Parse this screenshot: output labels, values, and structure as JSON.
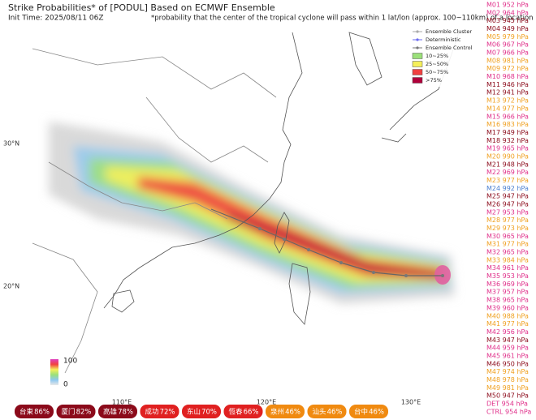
{
  "header": {
    "title": "Strike Probabilities* of [PODUL] Based on ECMWF Ensemble",
    "init_time": "Init Time: 2025/08/11 06Z",
    "note": "*probability that the center of the tropical cyclone will pass within 1 lat/lon (approx. 100~110km) of a location"
  },
  "legend": {
    "items": [
      {
        "label": "Ensemble Cluster"
      },
      {
        "label": "Deterministic"
      },
      {
        "label": "Ensemble Control"
      },
      {
        "label": "10~25%",
        "color": "#9be07a"
      },
      {
        "label": "25~50%",
        "color": "#f5ef5a"
      },
      {
        "label": "50~75%",
        "color": "#f04040"
      },
      {
        "label": ">75%",
        "color": "#b0003a"
      }
    ]
  },
  "axes": {
    "lat_labels": [
      "30°N",
      "20°N"
    ],
    "lon_labels": [
      "110°E",
      "120°E",
      "130°E"
    ]
  },
  "colorbar": {
    "max_label": "100",
    "min_label": "0"
  },
  "members": [
    {
      "label": "M01 952 hPa",
      "color": "#e0308a"
    },
    {
      "label": "M02 964 hPa",
      "color": "#e0308a"
    },
    {
      "label": "M03 945 hPa",
      "color": "#8b0a1a"
    },
    {
      "label": "M04 949 hPa",
      "color": "#8b0a1a"
    },
    {
      "label": "M05 979 hPa",
      "color": "#f0a020"
    },
    {
      "label": "M06 967 hPa",
      "color": "#e0308a"
    },
    {
      "label": "M07 966 hPa",
      "color": "#e0308a"
    },
    {
      "label": "M08 981 hPa",
      "color": "#f0a020"
    },
    {
      "label": "M09 972 hPa",
      "color": "#f0a020"
    },
    {
      "label": "M10 968 hPa",
      "color": "#e0308a"
    },
    {
      "label": "M11 946 hPa",
      "color": "#8b0a1a"
    },
    {
      "label": "M12 941 hPa",
      "color": "#8b0a1a"
    },
    {
      "label": "M13 972 hPa",
      "color": "#f0a020"
    },
    {
      "label": "M14 977 hPa",
      "color": "#f0a020"
    },
    {
      "label": "M15 966 hPa",
      "color": "#e0308a"
    },
    {
      "label": "M16 983 hPa",
      "color": "#f0a020"
    },
    {
      "label": "M17 949 hPa",
      "color": "#8b0a1a"
    },
    {
      "label": "M18 932 hPa",
      "color": "#8b0a1a"
    },
    {
      "label": "M19 965 hPa",
      "color": "#e0308a"
    },
    {
      "label": "M20 990 hPa",
      "color": "#f0a020"
    },
    {
      "label": "M21 948 hPa",
      "color": "#8b0a1a"
    },
    {
      "label": "M22 969 hPa",
      "color": "#e0308a"
    },
    {
      "label": "M23 977 hPa",
      "color": "#f0a020"
    },
    {
      "label": "M24 992 hPa",
      "color": "#4a7fd0"
    },
    {
      "label": "M25 947 hPa",
      "color": "#8b0a1a"
    },
    {
      "label": "M26 947 hPa",
      "color": "#8b0a1a"
    },
    {
      "label": "M27 953 hPa",
      "color": "#e0308a"
    },
    {
      "label": "M28 977 hPa",
      "color": "#f0a020"
    },
    {
      "label": "M29 973 hPa",
      "color": "#f0a020"
    },
    {
      "label": "M30 965 hPa",
      "color": "#e0308a"
    },
    {
      "label": "M31 977 hPa",
      "color": "#f0a020"
    },
    {
      "label": "M32 965 hPa",
      "color": "#e0308a"
    },
    {
      "label": "M33 984 hPa",
      "color": "#f0a020"
    },
    {
      "label": "M34 961 hPa",
      "color": "#e0308a"
    },
    {
      "label": "M35 953 hPa",
      "color": "#e0308a"
    },
    {
      "label": "M36 969 hPa",
      "color": "#e0308a"
    },
    {
      "label": "M37 957 hPa",
      "color": "#e0308a"
    },
    {
      "label": "M38 965 hPa",
      "color": "#e0308a"
    },
    {
      "label": "M39 960 hPa",
      "color": "#e0308a"
    },
    {
      "label": "M40 988 hPa",
      "color": "#f0a020"
    },
    {
      "label": "M41 977 hPa",
      "color": "#f0a020"
    },
    {
      "label": "M42 956 hPa",
      "color": "#e0308a"
    },
    {
      "label": "M43 947 hPa",
      "color": "#8b0a1a"
    },
    {
      "label": "M44 959 hPa",
      "color": "#e0308a"
    },
    {
      "label": "M45 961 hPa",
      "color": "#e0308a"
    },
    {
      "label": "M46 950 hPa",
      "color": "#8b0a1a"
    },
    {
      "label": "M47 974 hPa",
      "color": "#f0a020"
    },
    {
      "label": "M48 978 hPa",
      "color": "#f0a020"
    },
    {
      "label": "M49 981 hPa",
      "color": "#f0a020"
    },
    {
      "label": "M50 947 hPa",
      "color": "#8b0a1a"
    },
    {
      "label": "DET 954 hPa",
      "color": "#e0308a"
    },
    {
      "label": "CTRL 954 hPa",
      "color": "#e0308a"
    }
  ],
  "cities": [
    {
      "name": "台東",
      "prob": "86%",
      "color": "#8b0a1a"
    },
    {
      "name": "厦门",
      "prob": "82%",
      "color": "#8b0a1a"
    },
    {
      "name": "高雄",
      "prob": "78%",
      "color": "#8b0a1a"
    },
    {
      "name": "成功",
      "prob": "72%",
      "color": "#e02020"
    },
    {
      "name": "东山",
      "prob": "70%",
      "color": "#e02020"
    },
    {
      "name": "恆春",
      "prob": "66%",
      "color": "#e02020"
    },
    {
      "name": "泉州",
      "prob": "46%",
      "color": "#f08a10"
    },
    {
      "name": "汕头",
      "prob": "46%",
      "color": "#f08a10"
    },
    {
      "name": "台中",
      "prob": "46%",
      "color": "#f08a10"
    }
  ]
}
